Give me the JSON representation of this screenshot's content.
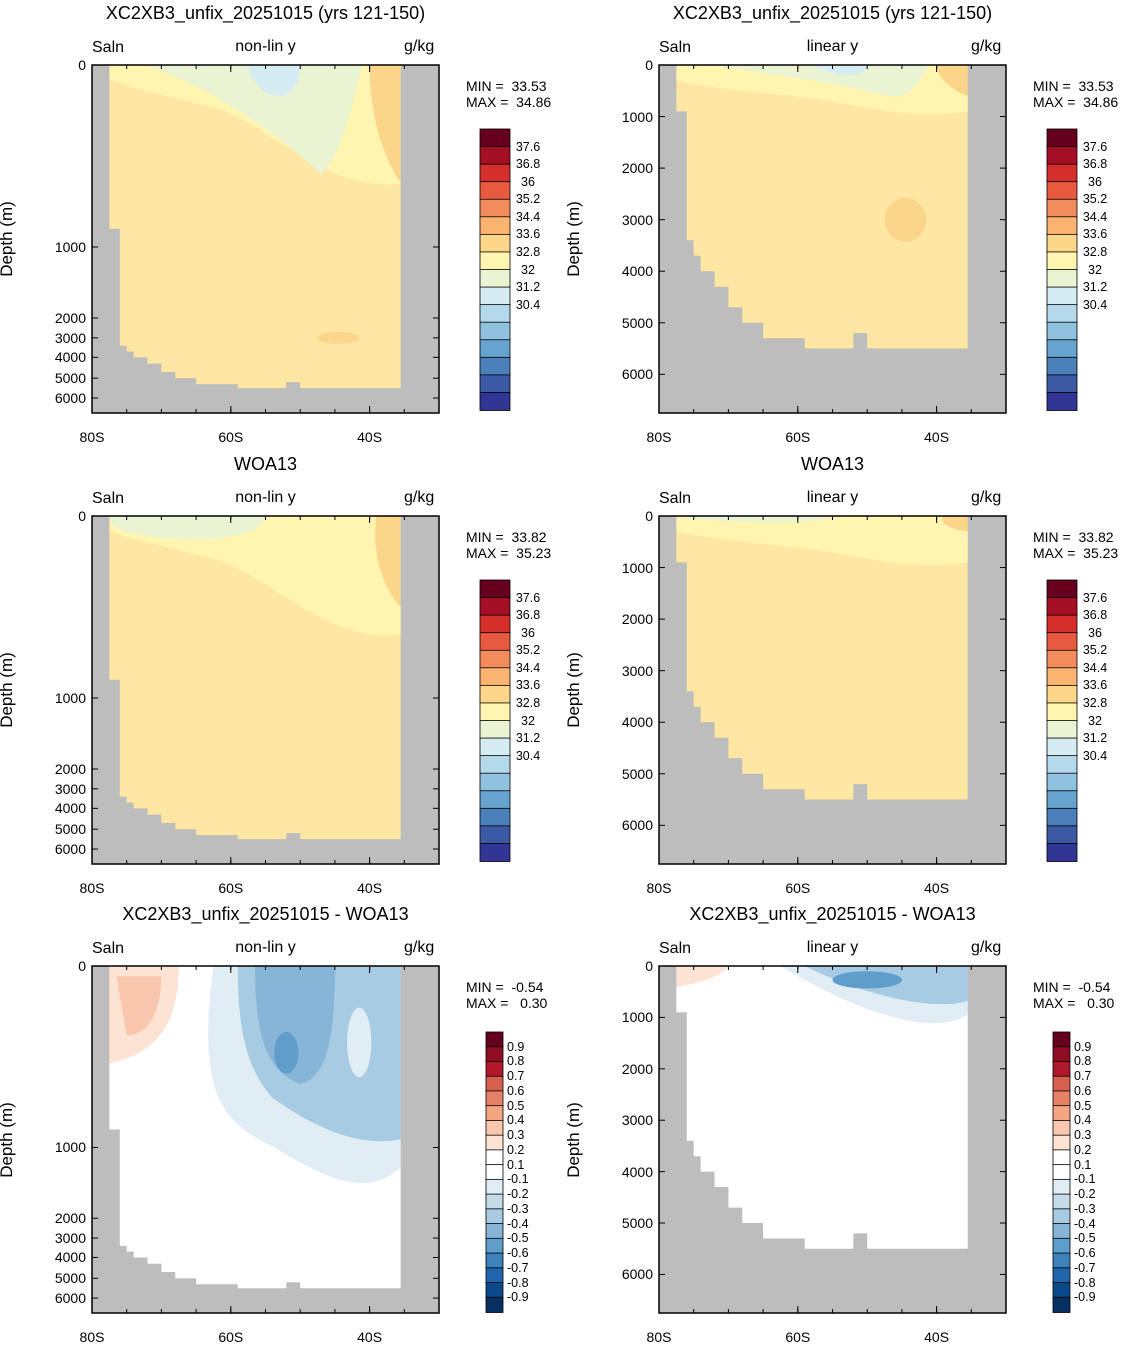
{
  "chart_data": [
    {
      "type": "heatmap",
      "title": "XC2XB3_unfix_20251015 (yrs 121-150)",
      "variable": "Saln",
      "subtitle": "non-lin y",
      "units": "g/kg",
      "ylabel": "Depth (m)",
      "xticks": [
        "80S",
        "60S",
        "40S"
      ],
      "yticks": [
        "0",
        "1000",
        "2000",
        "3000",
        "4000",
        "5000",
        "6000"
      ],
      "min_label": "MIN =  33.53",
      "max_label": "MAX =  34.86",
      "colorbar_labels": [
        "37.6",
        "36.8",
        "36",
        "35.2",
        "34.4",
        "33.6",
        "32.8",
        "32",
        "31.2",
        "30.4"
      ],
      "colorbar_colors": [
        "#67001f",
        "#a50f26",
        "#d42f2a",
        "#e85a3f",
        "#f38c5c",
        "#fbb46f",
        "#fdd68a",
        "#fff5b0",
        "#eaf3d2",
        "#d6ecf3",
        "#b4d9ea",
        "#8ec2de",
        "#67a3cf",
        "#4a7fb9",
        "#3c5aa3",
        "#313695"
      ],
      "fields": [
        "#fde7a3",
        "#fff5b0",
        "#eaf3d2",
        "#d6ecf3",
        "#fbd58a"
      ]
    },
    {
      "type": "heatmap",
      "title": "XC2XB3_unfix_20251015 (yrs 121-150)",
      "variable": "Saln",
      "subtitle": "linear y",
      "units": "g/kg",
      "ylabel": "Depth (m)",
      "xticks": [
        "80S",
        "60S",
        "40S"
      ],
      "yticks": [
        "0",
        "1000",
        "2000",
        "3000",
        "4000",
        "5000",
        "6000"
      ],
      "min_label": "MIN =  33.53",
      "max_label": "MAX =  34.86",
      "colorbar_labels": [
        "37.6",
        "36.8",
        "36",
        "35.2",
        "34.4",
        "33.6",
        "32.8",
        "32",
        "31.2",
        "30.4"
      ]
    },
    {
      "type": "heatmap",
      "title": "WOA13",
      "variable": "Saln",
      "subtitle": "non-lin y",
      "units": "g/kg",
      "ylabel": "Depth (m)",
      "xticks": [
        "80S",
        "60S",
        "40S"
      ],
      "yticks": [
        "0",
        "1000",
        "2000",
        "3000",
        "4000",
        "5000",
        "6000"
      ],
      "min_label": "MIN =  33.82",
      "max_label": "MAX =  35.23",
      "colorbar_labels": [
        "37.6",
        "36.8",
        "36",
        "35.2",
        "34.4",
        "33.6",
        "32.8",
        "32",
        "31.2",
        "30.4"
      ]
    },
    {
      "type": "heatmap",
      "title": "WOA13",
      "variable": "Saln",
      "subtitle": "linear y",
      "units": "g/kg",
      "ylabel": "Depth (m)",
      "xticks": [
        "80S",
        "60S",
        "40S"
      ],
      "yticks": [
        "0",
        "1000",
        "2000",
        "3000",
        "4000",
        "5000",
        "6000"
      ],
      "min_label": "MIN =  33.82",
      "max_label": "MAX =  35.23",
      "colorbar_labels": [
        "37.6",
        "36.8",
        "36",
        "35.2",
        "34.4",
        "33.6",
        "32.8",
        "32",
        "31.2",
        "30.4"
      ]
    },
    {
      "type": "heatmap",
      "title": "XC2XB3_unfix_20251015 - WOA13",
      "variable": "Saln",
      "subtitle": "non-lin y",
      "units": "g/kg",
      "ylabel": "Depth (m)",
      "xticks": [
        "80S",
        "60S",
        "40S"
      ],
      "yticks": [
        "0",
        "1000",
        "2000",
        "3000",
        "4000",
        "5000",
        "6000"
      ],
      "min_label": "MIN =  -0.54",
      "max_label": "MAX =   0.30",
      "colorbar_labels": [
        "0.9",
        "0.8",
        "0.7",
        "0.6",
        "0.5",
        "0.4",
        "0.3",
        "0.2",
        "0.1",
        "-0.1",
        "-0.2",
        "-0.3",
        "-0.4",
        "-0.5",
        "-0.6",
        "-0.7",
        "-0.8",
        "-0.9"
      ],
      "colorbar_colors": [
        "#67001f",
        "#8e0d25",
        "#b2182b",
        "#d6604d",
        "#e58267",
        "#f4a582",
        "#f9c7ad",
        "#fde3d3",
        "#ffffff",
        "#ffffff",
        "#e1edf5",
        "#c6dbea",
        "#a6cbe2",
        "#86b5d8",
        "#5f9ecb",
        "#3c82bb",
        "#2166ac",
        "#0b4a8a",
        "#053061"
      ]
    },
    {
      "type": "heatmap",
      "title": "XC2XB3_unfix_20251015 - WOA13",
      "variable": "Saln",
      "subtitle": "linear y",
      "units": "g/kg",
      "ylabel": "Depth (m)",
      "xticks": [
        "80S",
        "60S",
        "40S"
      ],
      "yticks": [
        "0",
        "1000",
        "2000",
        "3000",
        "4000",
        "5000",
        "6000"
      ],
      "min_label": "MIN =  -0.54",
      "max_label": "MAX =   0.30",
      "colorbar_labels": [
        "0.9",
        "0.8",
        "0.7",
        "0.6",
        "0.5",
        "0.4",
        "0.3",
        "0.2",
        "0.1",
        "-0.1",
        "-0.2",
        "-0.3",
        "-0.4",
        "-0.5",
        "-0.6",
        "-0.7",
        "-0.8",
        "-0.9"
      ]
    }
  ]
}
